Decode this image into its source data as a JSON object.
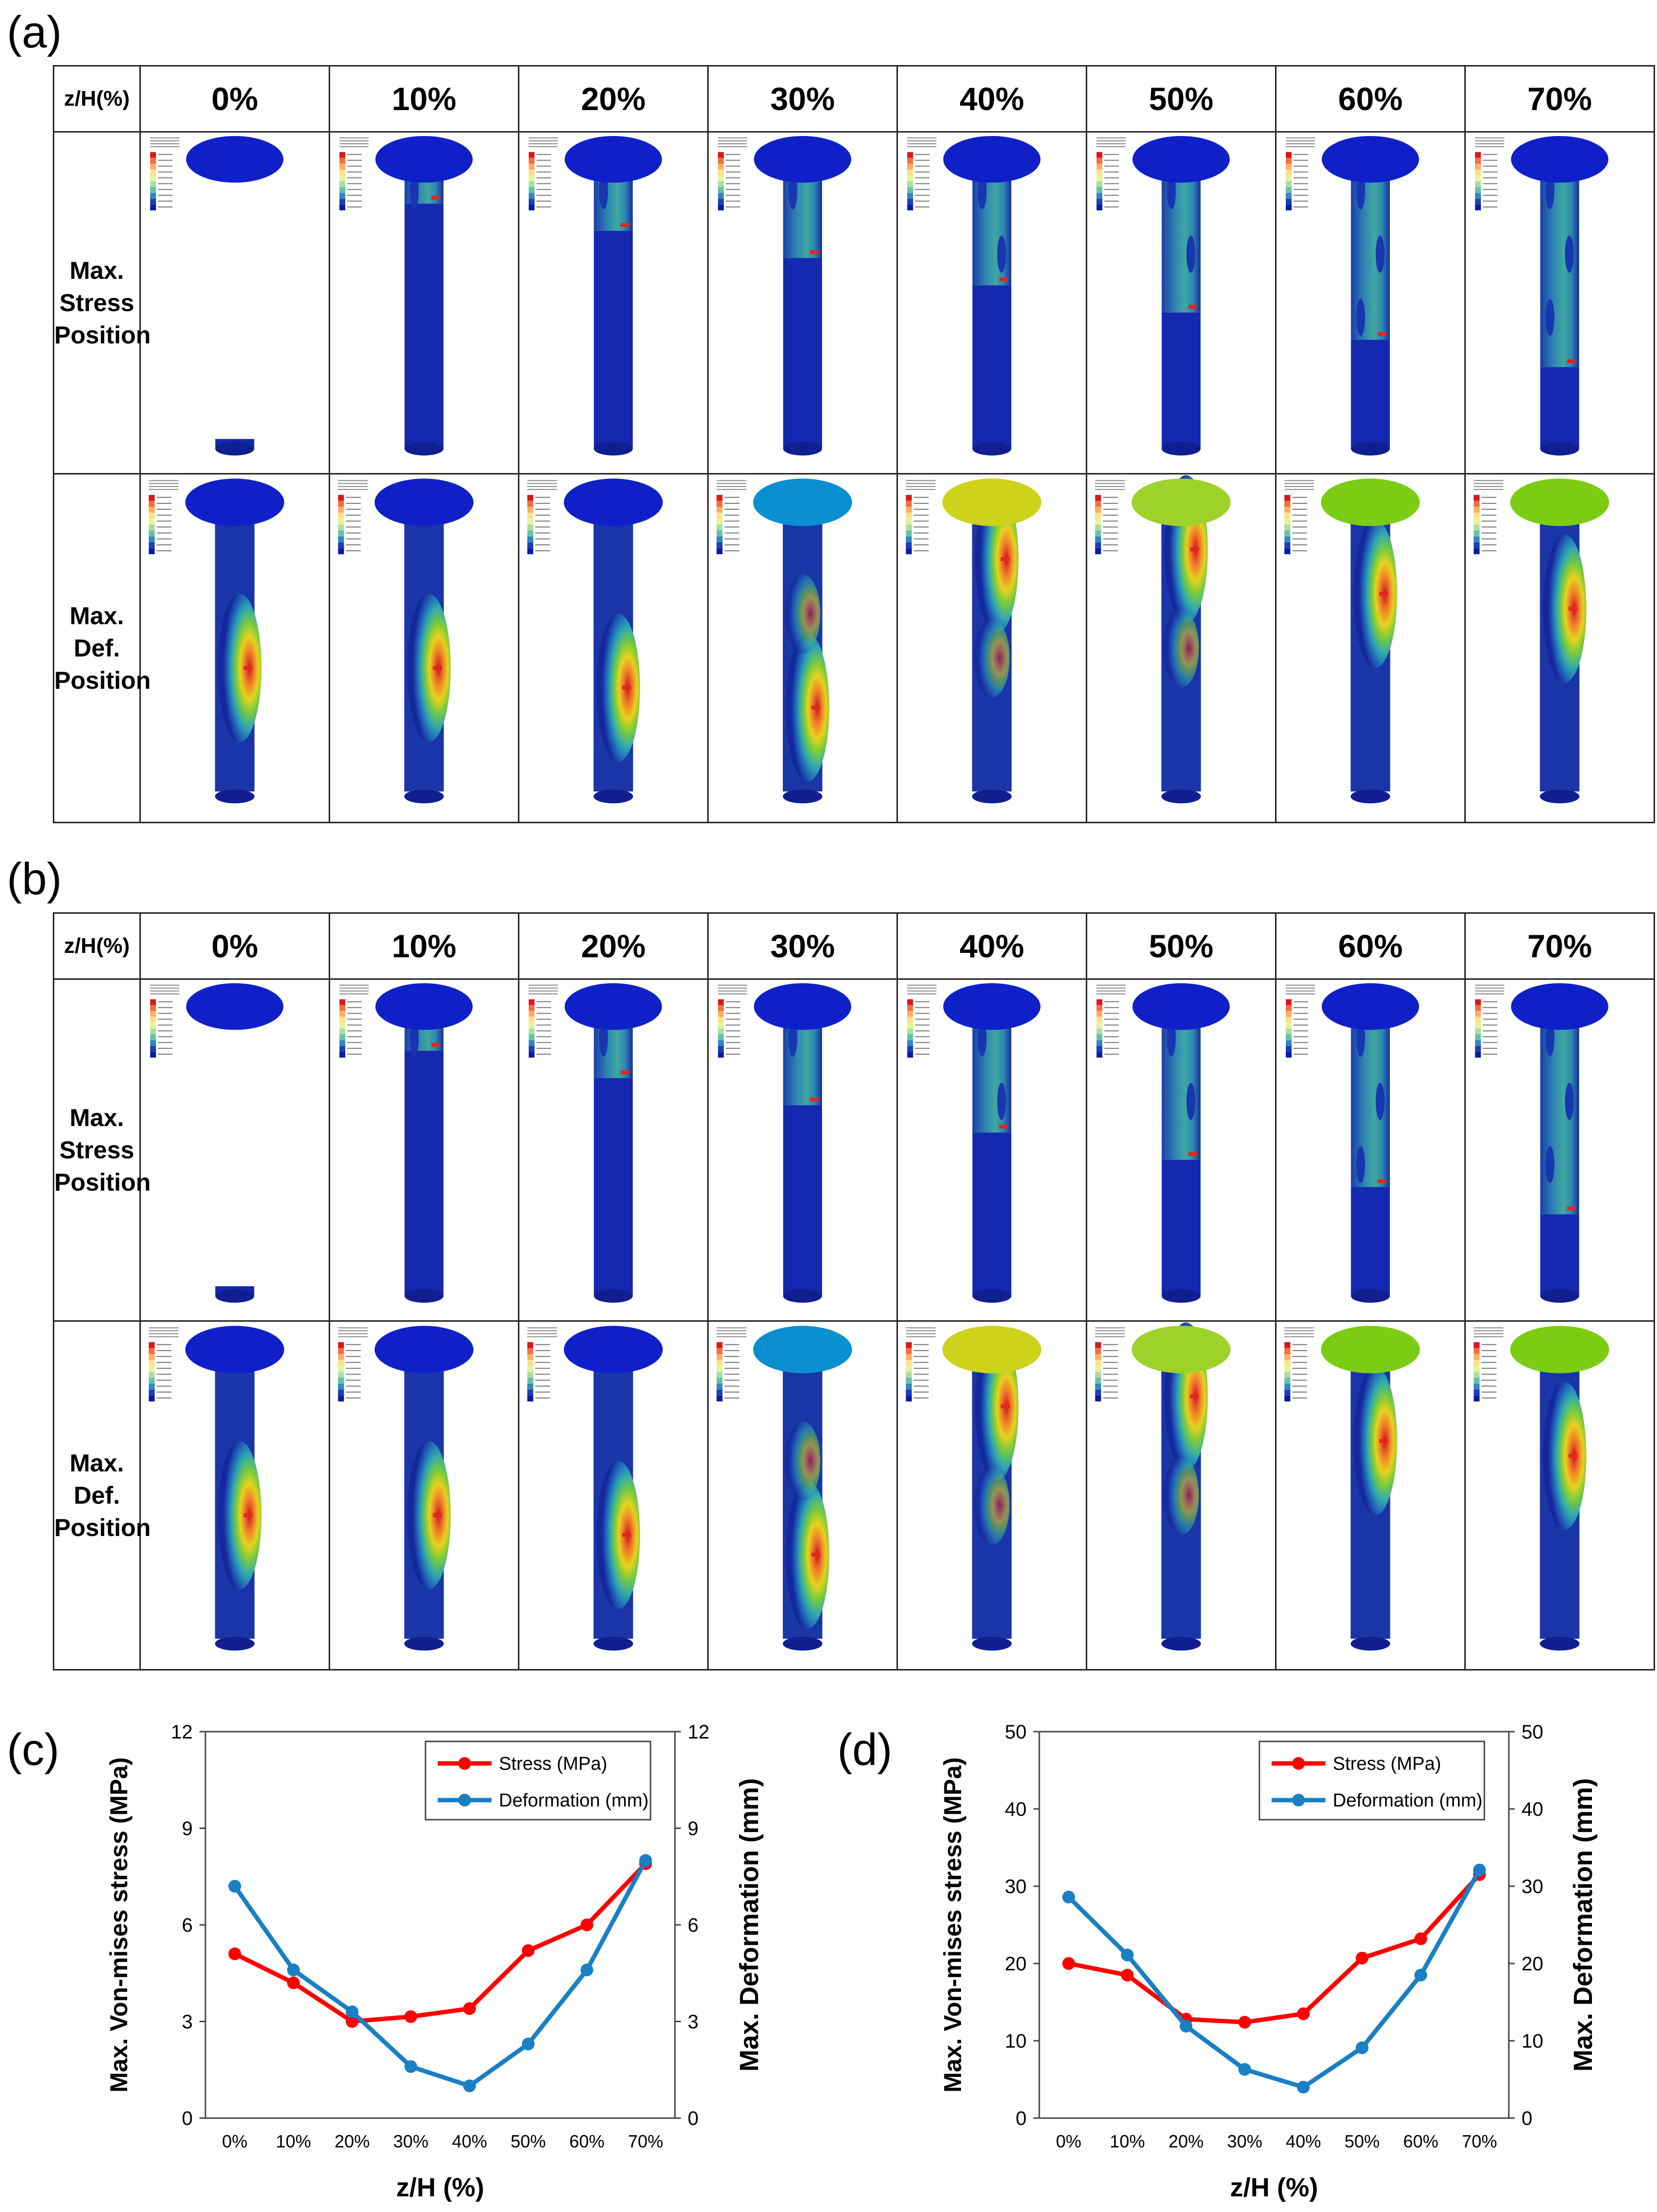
{
  "figure_a": {
    "label": "(a)",
    "header_corner": "z/H(%)",
    "columns": [
      "0%",
      "10%",
      "20%",
      "30%",
      "40%",
      "50%",
      "60%",
      "70%"
    ],
    "rows": [
      {
        "label_lines": [
          "Max.",
          "Stress",
          "Position"
        ],
        "kind": "stress"
      },
      {
        "label_lines": [
          "Max.",
          "Def.",
          "Position"
        ],
        "kind": "def"
      }
    ],
    "top_cap_colors": [
      "#1020c8",
      "#1020c8",
      "#1020c8",
      "#0a8fd0",
      "#cdd21a",
      "#9ed22a",
      "#7ccc14",
      "#7ccc14"
    ]
  },
  "figure_b": {
    "label": "(b)",
    "header_corner": "z/H(%)",
    "columns": [
      "0%",
      "10%",
      "20%",
      "30%",
      "40%",
      "50%",
      "60%",
      "70%"
    ],
    "rows": [
      {
        "label_lines": [
          "Max.",
          "Stress",
          "Position"
        ],
        "kind": "stress"
      },
      {
        "label_lines": [
          "Max.",
          "Def.",
          "Position"
        ],
        "kind": "def"
      }
    ],
    "top_cap_colors": [
      "#1020c8",
      "#1020c8",
      "#1020c8",
      "#0a8fd0",
      "#cdd21a",
      "#9ed22a",
      "#7ccc14",
      "#7ccc14"
    ]
  },
  "colors": {
    "stress": "#ff0000",
    "deformation": "#1a7fc4",
    "mesh_blue": "#1020c8"
  },
  "chart_data": [
    {
      "id": "c",
      "label": "(c)",
      "type": "line",
      "categories": [
        "0%",
        "10%",
        "20%",
        "30%",
        "40%",
        "50%",
        "60%",
        "70%"
      ],
      "series": [
        {
          "name": "Stress (MPa)",
          "axis": "left",
          "values": [
            5.1,
            4.2,
            3.0,
            3.15,
            3.4,
            5.2,
            6.0,
            7.9
          ]
        },
        {
          "name": "Deformation (mm)",
          "axis": "right",
          "values": [
            7.2,
            4.6,
            3.3,
            1.6,
            1.0,
            2.3,
            4.6,
            8.0
          ]
        }
      ],
      "xlabel": "z/H (%)",
      "ylabel_left": "Max. Von-mises stress (MPa)",
      "ylabel_right": "Max. Deformation (mm)",
      "ylim": [
        0,
        12
      ],
      "yticks": [
        "0",
        "3",
        "6",
        "9",
        "12"
      ],
      "legend_position": "top-right"
    },
    {
      "id": "d",
      "label": "(d)",
      "type": "line",
      "categories": [
        "0%",
        "10%",
        "20%",
        "30%",
        "40%",
        "50%",
        "60%",
        "70%"
      ],
      "series": [
        {
          "name": "Stress (MPa)",
          "axis": "left",
          "values": [
            20.0,
            18.5,
            12.8,
            12.4,
            13.5,
            20.7,
            23.2,
            31.5
          ]
        },
        {
          "name": "Deformation (mm)",
          "axis": "right",
          "values": [
            28.6,
            21.1,
            11.9,
            6.3,
            4.0,
            9.1,
            18.5,
            32.1
          ]
        }
      ],
      "xlabel": "z/H (%)",
      "ylabel_left": "Max. Von-mises stress (MPa)",
      "ylabel_right": "Max. Deformation (mm)",
      "ylim": [
        0,
        50
      ],
      "yticks": [
        "0",
        "10",
        "20",
        "30",
        "40",
        "50"
      ],
      "legend_position": "top-right"
    }
  ]
}
